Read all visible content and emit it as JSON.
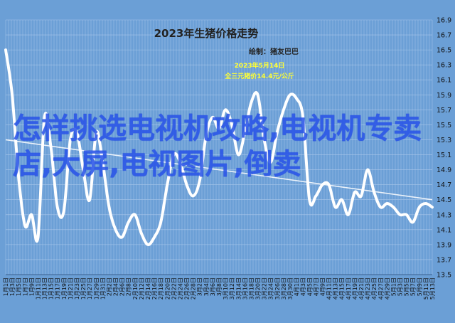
{
  "chart_data": {
    "type": "line",
    "title": "2023年生猪价格走势",
    "subtitle": "绘制：猪友巴巴",
    "annotation": {
      "date_label": "2023年5月14日",
      "value_label": "全三元猪价14.4元/公斤",
      "x": "5月14日",
      "y": 14.4
    },
    "ylim": [
      13.5,
      16.9
    ],
    "yticks": [
      "13.5",
      "13.7",
      "13.9",
      "14.1",
      "14.3",
      "14.5",
      "14.7",
      "14.9",
      "15.1",
      "15.3",
      "15.5",
      "15.7",
      "15.9",
      "16.1",
      "16.3",
      "16.5",
      "16.7",
      "16.9"
    ],
    "x": [
      "1月1日",
      "1月3日",
      "1月5日",
      "1月7日",
      "1月9日",
      "1月11日",
      "1月13日",
      "1月15日",
      "1月17日",
      "1月19日",
      "1月21日",
      "1月23日",
      "1月25日",
      "1月27日",
      "1月29日",
      "1月31日",
      "2月2日",
      "2月4日",
      "2月6日",
      "2月8日",
      "2月10日",
      "2月12日",
      "2月14日",
      "2月16日",
      "2月18日",
      "2月20日",
      "2月22日",
      "2月24日",
      "2月26日",
      "2月28日",
      "3月2日",
      "3月4日",
      "3月6日",
      "3月8日",
      "3月10日",
      "3月12日",
      "3月14日",
      "3月16日",
      "3月18日",
      "3月20日",
      "3月22日",
      "3月24日",
      "3月26日",
      "3月28日",
      "3月30日",
      "4月1日",
      "4月3日",
      "4月5日",
      "4月7日",
      "4月9日",
      "4月11日",
      "4月13日",
      "4月15日",
      "4月17日",
      "4月19日",
      "4月21日",
      "4月23日",
      "4月25日",
      "4月27日",
      "4月29日",
      "5月1日",
      "5月3日",
      "5月5日",
      "5月7日",
      "5月9日",
      "5月11日",
      "5月13日"
    ],
    "series": [
      {
        "values": [
          16.5,
          15.9,
          14.8,
          14.15,
          14.3,
          14.0,
          15.6,
          15.2,
          14.4,
          14.35,
          15.3,
          15.4,
          14.9,
          14.5,
          15.4,
          15.0,
          14.4,
          14.1,
          14.0,
          14.2,
          14.3,
          14.05,
          13.9,
          14.0,
          14.2,
          14.7,
          15.1,
          15.0,
          14.7,
          14.55,
          14.75,
          15.35,
          15.6,
          15.45,
          15.7,
          15.5,
          15.1,
          15.4,
          15.8,
          15.9,
          15.3,
          15.0,
          15.4,
          15.7,
          15.9,
          15.85,
          15.6,
          14.5,
          14.55,
          14.7,
          14.7,
          14.4,
          14.5,
          14.3,
          14.6,
          14.55,
          14.9,
          14.6,
          14.4,
          14.45,
          14.4,
          14.3,
          14.3,
          14.2,
          14.4,
          14.45,
          14.4
        ]
      }
    ],
    "trendline": {
      "start": 15.3,
      "end": 14.5
    },
    "grid": true,
    "colors": {
      "background": "#6b9fd6",
      "line": "#ffffff",
      "grid": "#a9c6ea"
    }
  },
  "overlay_text": "怎样挑选电视机攻略,电视机专卖店,大屏,电视图片,倒卖"
}
